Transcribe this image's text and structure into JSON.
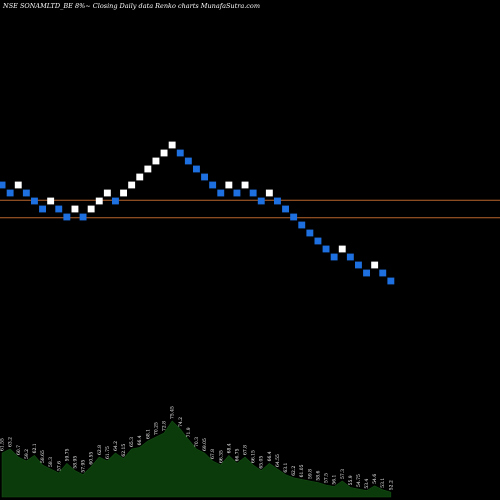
{
  "chart_data": {
    "type": "renko",
    "title": "NSE SONAMLTD_BE 8%~  Closing Daily data  Renko  charts MunafaSutra.com",
    "colors": {
      "background": "#000000",
      "up_brick": "#ffffff",
      "down_brick": "#1e6fe0",
      "support_line": "#b8652a",
      "volume_fill": "#0b3a0b",
      "volume_label": "#ffffff"
    },
    "bricks": [
      {
        "i": 0,
        "level": 11,
        "dir": "down"
      },
      {
        "i": 1,
        "level": 10,
        "dir": "down"
      },
      {
        "i": 2,
        "level": 11,
        "dir": "up"
      },
      {
        "i": 3,
        "level": 10,
        "dir": "down"
      },
      {
        "i": 4,
        "level": 9,
        "dir": "down"
      },
      {
        "i": 5,
        "level": 8,
        "dir": "down"
      },
      {
        "i": 6,
        "level": 9,
        "dir": "up"
      },
      {
        "i": 7,
        "level": 8,
        "dir": "down"
      },
      {
        "i": 8,
        "level": 7,
        "dir": "down"
      },
      {
        "i": 9,
        "level": 8,
        "dir": "up"
      },
      {
        "i": 10,
        "level": 7,
        "dir": "down"
      },
      {
        "i": 11,
        "level": 8,
        "dir": "up"
      },
      {
        "i": 12,
        "level": 9,
        "dir": "up"
      },
      {
        "i": 13,
        "level": 10,
        "dir": "up"
      },
      {
        "i": 14,
        "level": 9,
        "dir": "down"
      },
      {
        "i": 15,
        "level": 10,
        "dir": "up"
      },
      {
        "i": 16,
        "level": 11,
        "dir": "up"
      },
      {
        "i": 17,
        "level": 12,
        "dir": "up"
      },
      {
        "i": 18,
        "level": 13,
        "dir": "up"
      },
      {
        "i": 19,
        "level": 14,
        "dir": "up"
      },
      {
        "i": 20,
        "level": 15,
        "dir": "up"
      },
      {
        "i": 21,
        "level": 16,
        "dir": "up"
      },
      {
        "i": 22,
        "level": 15,
        "dir": "down"
      },
      {
        "i": 23,
        "level": 14,
        "dir": "down"
      },
      {
        "i": 24,
        "level": 13,
        "dir": "down"
      },
      {
        "i": 25,
        "level": 12,
        "dir": "down"
      },
      {
        "i": 26,
        "level": 11,
        "dir": "down"
      },
      {
        "i": 27,
        "level": 10,
        "dir": "down"
      },
      {
        "i": 28,
        "level": 11,
        "dir": "up"
      },
      {
        "i": 29,
        "level": 10,
        "dir": "down"
      },
      {
        "i": 30,
        "level": 11,
        "dir": "up"
      },
      {
        "i": 31,
        "level": 10,
        "dir": "down"
      },
      {
        "i": 32,
        "level": 9,
        "dir": "down"
      },
      {
        "i": 33,
        "level": 10,
        "dir": "up"
      },
      {
        "i": 34,
        "level": 9,
        "dir": "down"
      },
      {
        "i": 35,
        "level": 8,
        "dir": "down"
      },
      {
        "i": 36,
        "level": 7,
        "dir": "down"
      },
      {
        "i": 37,
        "level": 6,
        "dir": "down"
      },
      {
        "i": 38,
        "level": 5,
        "dir": "down"
      },
      {
        "i": 39,
        "level": 4,
        "dir": "down"
      },
      {
        "i": 40,
        "level": 3,
        "dir": "down"
      },
      {
        "i": 41,
        "level": 2,
        "dir": "down"
      },
      {
        "i": 42,
        "level": 3,
        "dir": "up"
      },
      {
        "i": 43,
        "level": 2,
        "dir": "down"
      },
      {
        "i": 44,
        "level": 1,
        "dir": "down"
      },
      {
        "i": 45,
        "level": 0,
        "dir": "down"
      },
      {
        "i": 46,
        "level": 1,
        "dir": "up"
      },
      {
        "i": 47,
        "level": 0,
        "dir": "down"
      },
      {
        "i": 48,
        "level": -1,
        "dir": "down"
      }
    ],
    "support_levels": [
      9.1,
      6.9
    ],
    "volume": [
      {
        "v": 0.55,
        "label": "61.55"
      },
      {
        "v": 0.6,
        "label": "63.2"
      },
      {
        "v": 0.5,
        "label": "60.7"
      },
      {
        "v": 0.45,
        "label": "59.2"
      },
      {
        "v": 0.52,
        "label": "62.1"
      },
      {
        "v": 0.4,
        "label": "58.65"
      },
      {
        "v": 0.35,
        "label": "58.3"
      },
      {
        "v": 0.3,
        "label": "57.6"
      },
      {
        "v": 0.42,
        "label": "59.75"
      },
      {
        "v": 0.33,
        "label": "58.95"
      },
      {
        "v": 0.28,
        "label": "57.95"
      },
      {
        "v": 0.38,
        "label": "60.55"
      },
      {
        "v": 0.5,
        "label": "62.8"
      },
      {
        "v": 0.45,
        "label": "61.75"
      },
      {
        "v": 0.55,
        "label": "64.2"
      },
      {
        "v": 0.48,
        "label": "62.15"
      },
      {
        "v": 0.6,
        "label": "65.3"
      },
      {
        "v": 0.62,
        "label": "66.4"
      },
      {
        "v": 0.7,
        "label": "68.1"
      },
      {
        "v": 0.75,
        "label": "70.25"
      },
      {
        "v": 0.8,
        "label": "72.8"
      },
      {
        "v": 0.95,
        "label": "75.45"
      },
      {
        "v": 0.85,
        "label": "74.2"
      },
      {
        "v": 0.72,
        "label": "71.9"
      },
      {
        "v": 0.6,
        "label": "70.3"
      },
      {
        "v": 0.55,
        "label": "69.05"
      },
      {
        "v": 0.45,
        "label": "67.8"
      },
      {
        "v": 0.4,
        "label": "66.35"
      },
      {
        "v": 0.52,
        "label": "68.4"
      },
      {
        "v": 0.42,
        "label": "66.75"
      },
      {
        "v": 0.5,
        "label": "67.8"
      },
      {
        "v": 0.4,
        "label": "66.15"
      },
      {
        "v": 0.33,
        "label": "65.05"
      },
      {
        "v": 0.42,
        "label": "66.4"
      },
      {
        "v": 0.35,
        "label": "64.55"
      },
      {
        "v": 0.28,
        "label": "63.1"
      },
      {
        "v": 0.24,
        "label": "62.2"
      },
      {
        "v": 0.22,
        "label": "61.05"
      },
      {
        "v": 0.2,
        "label": "59.8"
      },
      {
        "v": 0.18,
        "label": "58.6"
      },
      {
        "v": 0.15,
        "label": "57.5"
      },
      {
        "v": 0.13,
        "label": "56.1"
      },
      {
        "v": 0.2,
        "label": "57.3"
      },
      {
        "v": 0.12,
        "label": "55.9"
      },
      {
        "v": 0.1,
        "label": "54.75"
      },
      {
        "v": 0.08,
        "label": "53.4"
      },
      {
        "v": 0.14,
        "label": "54.6"
      },
      {
        "v": 0.09,
        "label": "53.1"
      },
      {
        "v": 0.06,
        "label": "52.2"
      }
    ]
  }
}
